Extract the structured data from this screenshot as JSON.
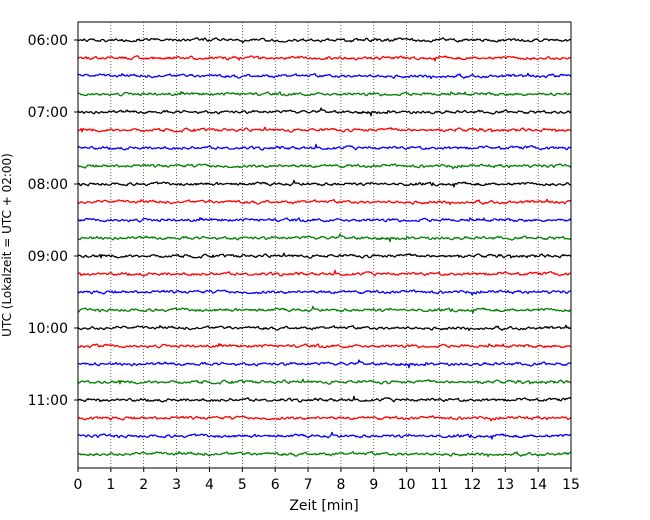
{
  "chart_data": {
    "type": "line",
    "title": "",
    "xlabel": "Zeit  [min]",
    "ylabel": "UTC (Lokalzeit = UTC + 02:00)",
    "xlim": [
      0,
      15
    ],
    "xticks": [
      0,
      1,
      2,
      3,
      4,
      5,
      6,
      7,
      8,
      9,
      10,
      11,
      12,
      13,
      14,
      15
    ],
    "y_tick_labels": [
      "06:00",
      "07:00",
      "08:00",
      "09:00",
      "10:00",
      "11:00"
    ],
    "trace_minutes": 15,
    "grid": "x-dotted",
    "trace_colors": [
      "#000000",
      "#ff0000",
      "#0000ff",
      "#008000"
    ],
    "traces": [
      {
        "start": "06:00"
      },
      {
        "start": "06:15"
      },
      {
        "start": "06:30"
      },
      {
        "start": "06:45"
      },
      {
        "start": "07:00"
      },
      {
        "start": "07:15"
      },
      {
        "start": "07:30"
      },
      {
        "start": "07:45"
      },
      {
        "start": "08:00"
      },
      {
        "start": "08:15"
      },
      {
        "start": "08:30"
      },
      {
        "start": "08:45"
      },
      {
        "start": "09:00"
      },
      {
        "start": "09:15"
      },
      {
        "start": "09:30"
      },
      {
        "start": "09:45"
      },
      {
        "start": "10:00"
      },
      {
        "start": "10:15"
      },
      {
        "start": "10:30"
      },
      {
        "start": "10:45"
      },
      {
        "start": "11:00"
      },
      {
        "start": "11:15"
      },
      {
        "start": "11:30"
      },
      {
        "start": "11:45"
      }
    ]
  }
}
